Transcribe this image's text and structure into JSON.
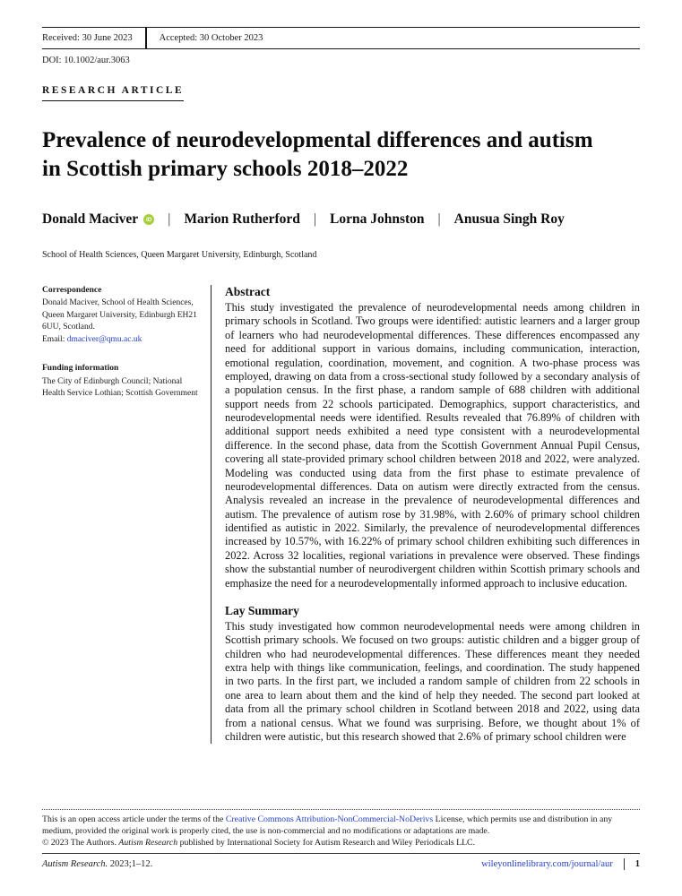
{
  "header": {
    "received": "Received: 30 June 2023",
    "accepted": "Accepted: 30 October 2023",
    "doi": "DOI: 10.1002/aur.3063",
    "article_type": "RESEARCH ARTICLE",
    "title": "Prevalence of neurodevelopmental differences and autism in Scottish primary schools 2018–2022",
    "authors": [
      {
        "name": "Donald Maciver"
      },
      {
        "name": "Marion Rutherford"
      },
      {
        "name": "Lorna Johnston"
      },
      {
        "name": "Anusua Singh Roy"
      }
    ],
    "author_separator": "|",
    "affiliation": "School of Health Sciences, Queen Margaret University, Edinburgh, Scotland"
  },
  "icons": {
    "orcid_glyph": "iD"
  },
  "sidebar": {
    "correspondence_heading": "Correspondence",
    "correspondence_text": "Donald Maciver, School of Health Sciences, Queen Margaret University, Edinburgh EH21 6UU, Scotland.",
    "email_label": "Email: ",
    "email": "dmaciver@qmu.ac.uk",
    "funding_heading": "Funding information",
    "funding_text": "The City of Edinburgh Council; National Health Service Lothian; Scottish Government"
  },
  "abstract": {
    "heading": "Abstract",
    "body": "This study investigated the prevalence of neurodevelopmental needs among children in primary schools in Scotland. Two groups were identified: autistic learners and a larger group of learners who had neurodevelopmental differences. These differences encompassed any need for additional support in various domains, including communication, interaction, emotional regulation, coordination, movement, and cognition. A two-phase process was employed, drawing on data from a cross-sectional study followed by a secondary analysis of a population census. In the first phase, a random sample of 688 children with additional support needs from 22 schools participated. Demographics, support characteristics, and neurodevelopmental needs were identified. Results revealed that 76.89% of children with additional support needs exhibited a need type consistent with a neurodevelopmental difference. In the second phase, data from the Scottish Government Annual Pupil Census, covering all state-provided primary school children between 2018 and 2022, were analyzed. Modeling was conducted using data from the first phase to estimate prevalence of neurodevelopmental differences. Data on autism were directly extracted from the census. Analysis revealed an increase in the prevalence of neurodevelopmental differences and autism. The prevalence of autism rose by 31.98%, with 2.60% of primary school children identified as autistic in 2022. Similarly, the prevalence of neurodevelopmental differences increased by 10.57%, with 16.22% of primary school children exhibiting such differences in 2022. Across 32 localities, regional variations in prevalence were observed. These findings show the substantial number of neurodivergent children within Scottish primary schools and emphasize the need for a neurodevelopmentally informed approach to inclusive education."
  },
  "lay_summary": {
    "heading": "Lay Summary",
    "body": "This study investigated how common neurodevelopmental needs were among children in Scottish primary schools. We focused on two groups: autistic children and a bigger group of children who had neurodevelopmental differences. These differences meant they needed extra help with things like communication, feelings, and coordination. The study happened in two parts. In the first part, we included a random sample of children from 22 schools in one area to learn about them and the kind of help they needed. The second part looked at data from all the primary school children in Scotland between 2018 and 2022, using data from a national census. What we found was surprising. Before, we thought about 1% of children were autistic, but this research showed that 2.6% of primary school children were"
  },
  "footer": {
    "license_pre": "This is an open access article under the terms of the ",
    "license_link": "Creative Commons Attribution-NonCommercial-NoDerivs",
    "license_post": " License, which permits use and distribution in any medium, provided the original work is properly cited, the use is non-commercial and no modifications or adaptations are made.",
    "copyright_pre": "© 2023 The Authors. ",
    "copyright_journal": "Autism Research",
    "copyright_post": " published by International Society for Autism Research and Wiley Periodicals LLC.",
    "citation_journal": "Autism Research.",
    "citation_rest": " 2023;1–12.",
    "site_link": "wileyonlinelibrary.com/journal/aur",
    "page_number": "1"
  },
  "colors": {
    "link_blue": "#2442C6",
    "orcid_green": "#A6CE39"
  }
}
